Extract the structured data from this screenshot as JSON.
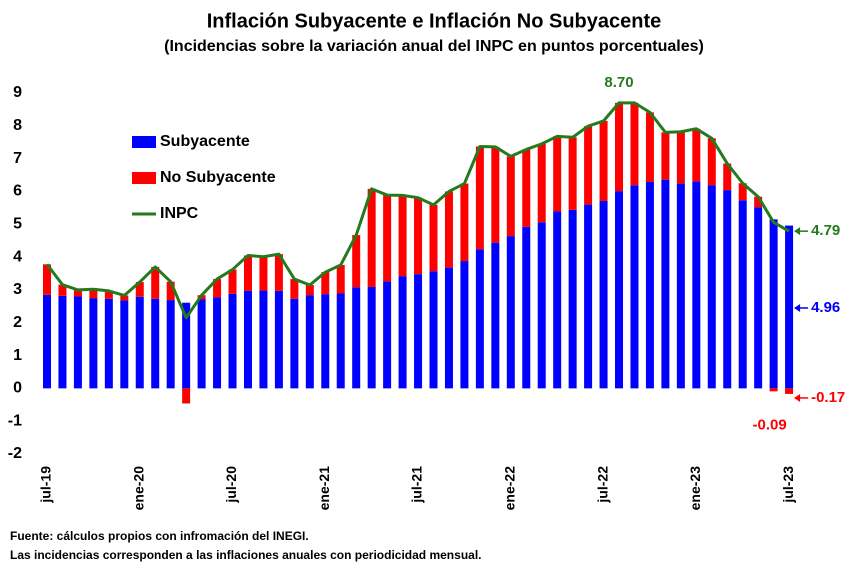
{
  "chart_data": {
    "type": "stacked_bar_line",
    "title": "Inflación Subyacente e Inflación No Subyacente",
    "subtitle": "(Incidencias sobre la variación anual del INPC en puntos porcentuales)",
    "notes": [
      "Fuente: cálculos propios con infromación del INEGI.",
      "Las incidencias corresponden a las inflaciones anuales con periodicidad mensual."
    ],
    "categories": [
      "jul-19",
      null,
      null,
      null,
      null,
      null,
      "ene-20",
      null,
      null,
      null,
      null,
      null,
      "jul-20",
      null,
      null,
      null,
      null,
      null,
      "ene-21",
      null,
      null,
      null,
      null,
      null,
      "jul-21",
      null,
      null,
      null,
      null,
      null,
      "ene-22",
      null,
      null,
      null,
      null,
      null,
      "jul-22",
      null,
      null,
      null,
      null,
      null,
      "ene-23",
      null,
      null,
      null,
      null,
      null,
      "jul-23"
    ],
    "series": [
      {
        "name": "Subyacente",
        "color": "#0000ff",
        "kind": "bar",
        "values": [
          2.85,
          2.82,
          2.8,
          2.75,
          2.73,
          2.68,
          2.79,
          2.73,
          2.69,
          2.61,
          2.72,
          2.77,
          2.88,
          2.97,
          2.98,
          2.97,
          2.73,
          2.84,
          2.87,
          2.89,
          3.08,
          3.09,
          3.26,
          3.42,
          3.48,
          3.57,
          3.68,
          3.88,
          4.24,
          4.44,
          4.64,
          4.92,
          5.06,
          5.39,
          5.44,
          5.6,
          5.71,
          6.01,
          6.19,
          6.29,
          6.36,
          6.24,
          6.31,
          6.19,
          6.04,
          5.73,
          5.52,
          5.15,
          4.96
        ],
        "value_labels": [
          null,
          null,
          null,
          null,
          null,
          null,
          null,
          null,
          null,
          null,
          null,
          null,
          null,
          null,
          null,
          null,
          null,
          null,
          null,
          null,
          null,
          null,
          null,
          null,
          null,
          null,
          null,
          null,
          null,
          null,
          null,
          null,
          null,
          null,
          null,
          null,
          null,
          null,
          null,
          null,
          null,
          null,
          null,
          null,
          null,
          null,
          null,
          null,
          "4.96"
        ]
      },
      {
        "name": "No Subyacente",
        "color": "#ff0000",
        "kind": "bar",
        "values": [
          0.93,
          0.34,
          0.2,
          0.27,
          0.24,
          0.15,
          0.45,
          0.97,
          0.56,
          -0.46,
          0.12,
          0.56,
          0.74,
          1.08,
          1.03,
          1.12,
          0.6,
          0.31,
          0.67,
          0.87,
          1.59,
          2.99,
          2.63,
          2.46,
          2.33,
          2.02,
          2.32,
          2.36,
          3.13,
          2.92,
          2.43,
          2.36,
          2.39,
          2.29,
          2.21,
          2.39,
          2.44,
          2.69,
          2.51,
          2.12,
          1.44,
          1.58,
          1.6,
          1.43,
          0.81,
          0.52,
          0.32,
          -0.09,
          -0.17
        ],
        "value_labels": [
          null,
          null,
          null,
          null,
          null,
          null,
          null,
          null,
          null,
          null,
          null,
          null,
          null,
          null,
          null,
          null,
          null,
          null,
          null,
          null,
          null,
          null,
          null,
          null,
          null,
          null,
          null,
          null,
          null,
          null,
          null,
          null,
          null,
          null,
          null,
          null,
          null,
          null,
          null,
          null,
          null,
          null,
          null,
          null,
          null,
          null,
          null,
          "-0.09",
          "-0.17"
        ]
      },
      {
        "name": "INPC",
        "color": "#267a1e",
        "kind": "line",
        "values": [
          3.78,
          3.16,
          3.0,
          3.02,
          2.97,
          2.83,
          3.24,
          3.7,
          3.25,
          2.15,
          2.84,
          3.33,
          3.62,
          4.05,
          4.01,
          4.09,
          3.33,
          3.15,
          3.54,
          3.76,
          4.67,
          6.08,
          5.89,
          5.88,
          5.81,
          5.59,
          6.0,
          6.24,
          7.37,
          7.36,
          7.07,
          7.28,
          7.45,
          7.68,
          7.65,
          7.99,
          8.15,
          8.7,
          8.7,
          8.41,
          7.8,
          7.82,
          7.91,
          7.62,
          6.85,
          6.25,
          5.84,
          5.06,
          4.79
        ],
        "value_labels": [
          null,
          null,
          null,
          null,
          null,
          null,
          null,
          null,
          null,
          null,
          null,
          null,
          null,
          null,
          null,
          null,
          null,
          null,
          null,
          null,
          null,
          null,
          null,
          null,
          null,
          null,
          null,
          null,
          null,
          null,
          null,
          null,
          null,
          null,
          null,
          null,
          null,
          "8.70",
          null,
          null,
          null,
          null,
          null,
          null,
          null,
          null,
          null,
          null,
          "4.79"
        ]
      }
    ],
    "ylim": [
      -2,
      9
    ],
    "yticks": [
      -2,
      -1,
      0,
      1,
      2,
      3,
      4,
      5,
      6,
      7,
      8,
      9
    ],
    "grid": false,
    "legend": "upper left"
  }
}
